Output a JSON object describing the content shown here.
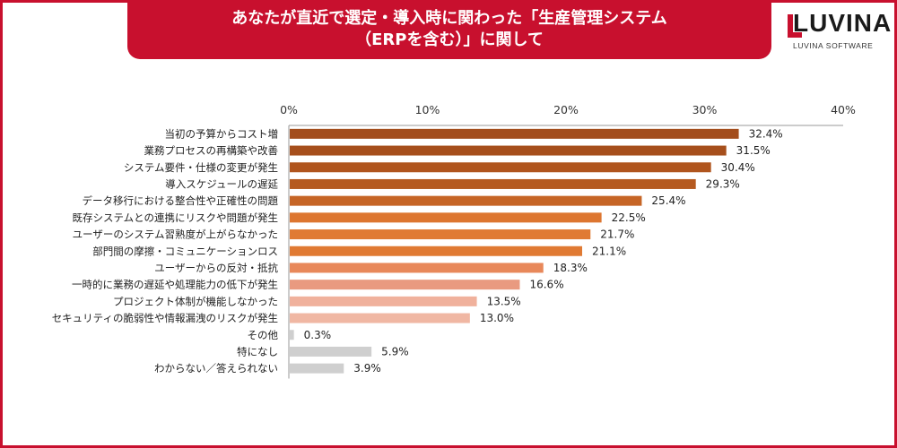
{
  "header": {
    "title_line1": "あなたが直近で選定・導入時に関わった「生産管理システム",
    "title_line2": "（ERPを含む）」に関して"
  },
  "logo": {
    "word": "LUVINA",
    "sub": "LUVINA SOFTWARE",
    "icon": "luvina-logo-icon"
  },
  "colors": {
    "frame": "#c8102e",
    "title_bg": "#c8102e"
  },
  "chart_data": {
    "type": "bar",
    "orientation": "horizontal",
    "title": "",
    "xlabel": "",
    "ylabel": "",
    "xlim": [
      0,
      40
    ],
    "ticks": [
      "0%",
      "10%",
      "20%",
      "30%",
      "40%"
    ],
    "tick_values": [
      0,
      10,
      20,
      30,
      40
    ],
    "grid": false,
    "categories": [
      "当初の予算からコスト増",
      "業務プロセスの再構築や改善",
      "システム要件・仕様の変更が発生",
      "導入スケジュールの遅延",
      "データ移行における整合性や正確性の問題",
      "既存システムとの連携にリスクや問題が発生",
      "ユーザーのシステム習熟度が上がらなかった",
      "部門間の摩擦・コミュニケーションロス",
      "ユーザーからの反対・抵抗",
      "一時的に業務の遅延や処理能力の低下が発生",
      "プロジェクト体制が機能しなかった",
      "セキュリティの脆弱性や情報漏洩のリスクが発生",
      "その他",
      "特になし",
      "わからない／答えられない"
    ],
    "values": [
      32.4,
      31.5,
      30.4,
      29.3,
      25.4,
      22.5,
      21.7,
      21.1,
      18.3,
      16.6,
      13.5,
      13.0,
      0.3,
      5.9,
      3.9
    ],
    "labels": [
      "32.4%",
      "31.5%",
      "30.4%",
      "29.3%",
      "25.4%",
      "22.5%",
      "21.7%",
      "21.1%",
      "18.3%",
      "16.6%",
      "13.5%",
      "13.0%",
      "0.3%",
      "5.9%",
      "3.9%"
    ],
    "bar_colors": [
      "#a34d1c",
      "#a64f1c",
      "#b0551e",
      "#b55a20",
      "#c66526",
      "#dd7630",
      "#e07a33",
      "#e07a33",
      "#e8885a",
      "#e99a80",
      "#f0b19c",
      "#f0b7a3",
      "#cfcfcf",
      "#cfcfcf",
      "#cfcfcf"
    ]
  }
}
